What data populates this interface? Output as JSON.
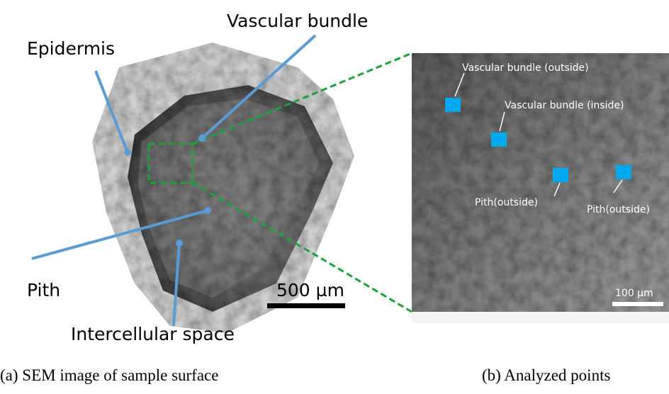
{
  "figure": {
    "left": {
      "labels": {
        "vascular_bundle": "Vascular bundle",
        "epidermis": "Epidermis",
        "pith": "Pith",
        "intercellular_space": "Intercellular space"
      },
      "scale_bar": "500 µm"
    },
    "right": {
      "points": [
        "Vascular bundle (outside)",
        "Vascular bundle (inside)",
        "Pith(outside)",
        "Pith(outside)"
      ],
      "scale_bar": "100 µm"
    },
    "captions": [
      "(a)  SEM image of sample surface",
      "(b) Analyzed points"
    ]
  }
}
